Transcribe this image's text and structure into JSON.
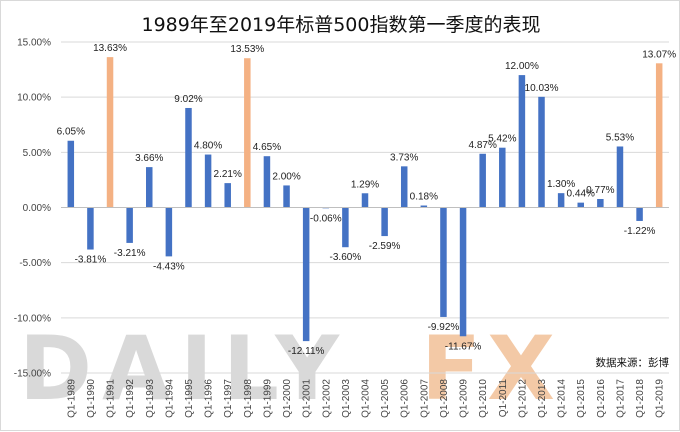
{
  "chart_data": {
    "type": "bar",
    "title": "1989年至2019年标普500指数第一季度的表现",
    "source_note": "数据来源：彭博",
    "watermark": {
      "left": "DAILY",
      "right": "FX"
    },
    "y_ticks": [
      "-15.00%",
      "-10.00%",
      "-5.00%",
      "0.00%",
      "5.00%",
      "10.00%",
      "15.00%"
    ],
    "ylim": [
      -15,
      15
    ],
    "categories": [
      "Q1-1989",
      "Q1-1990",
      "Q1-1991",
      "Q1-1992",
      "Q1-1993",
      "Q1-1994",
      "Q1-1995",
      "Q1-1996",
      "Q1-1997",
      "Q1-1998",
      "Q1-1999",
      "Q1-2000",
      "Q1-2001",
      "Q1-2002",
      "Q1-2003",
      "Q1-2004",
      "Q1-2005",
      "Q1-2006",
      "Q1-2007",
      "Q1-2008",
      "Q1-2009",
      "Q1-2010",
      "Q1-2011",
      "Q1-2012",
      "Q1-2013",
      "Q1-2014",
      "Q1-2015",
      "Q1-2016",
      "Q1-2017",
      "Q1-2018",
      "Q1-2019"
    ],
    "values": [
      6.05,
      -3.81,
      13.63,
      -3.21,
      3.66,
      -4.43,
      9.02,
      4.8,
      2.21,
      13.53,
      4.65,
      2.0,
      -12.11,
      -0.06,
      -3.6,
      1.29,
      -2.59,
      3.73,
      0.18,
      -9.92,
      -11.67,
      4.87,
      5.42,
      12.0,
      10.03,
      1.3,
      0.44,
      0.77,
      5.53,
      -1.22,
      13.07
    ],
    "labels": [
      "6.05%",
      "-3.81%",
      "13.63%",
      "-3.21%",
      "3.66%",
      "-4.43%",
      "9.02%",
      "4.80%",
      "2.21%",
      "13.53%",
      "4.65%",
      "2.00%",
      "-12.11%",
      "-0.06%",
      "-3.60%",
      "1.29%",
      "-2.59%",
      "3.73%",
      "0.18%",
      "-9.92%",
      "-11.67%",
      "4.87%",
      "5.42%",
      "12.00%",
      "10.03%",
      "1.30%",
      "0.44%",
      "0.77%",
      "5.53%",
      "-1.22%",
      "13.07%"
    ],
    "highlight_indices": [
      2,
      9,
      30
    ],
    "colors": {
      "default": "#4472c4",
      "highlight": "#f4b183"
    },
    "grid": true
  }
}
